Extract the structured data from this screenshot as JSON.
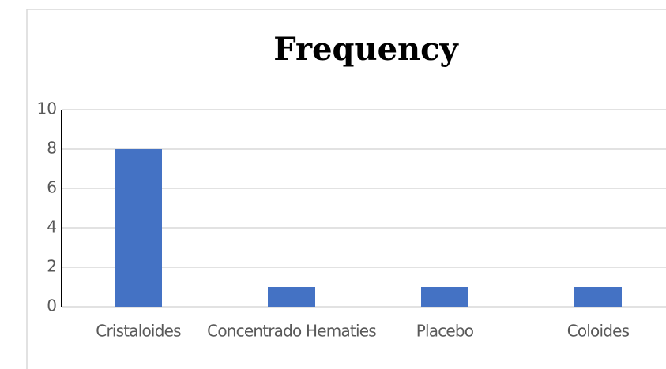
{
  "chart_data": {
    "type": "bar",
    "title": "Frequency",
    "categories": [
      "Cristaloides",
      "Concentrado Hematies",
      "Placebo",
      "Coloides"
    ],
    "values": [
      8,
      1,
      1,
      1
    ],
    "color": "#4472c4",
    "ylim": [
      0,
      10
    ],
    "yticks": [
      0,
      2,
      4,
      6,
      8,
      10
    ],
    "grid": true
  }
}
